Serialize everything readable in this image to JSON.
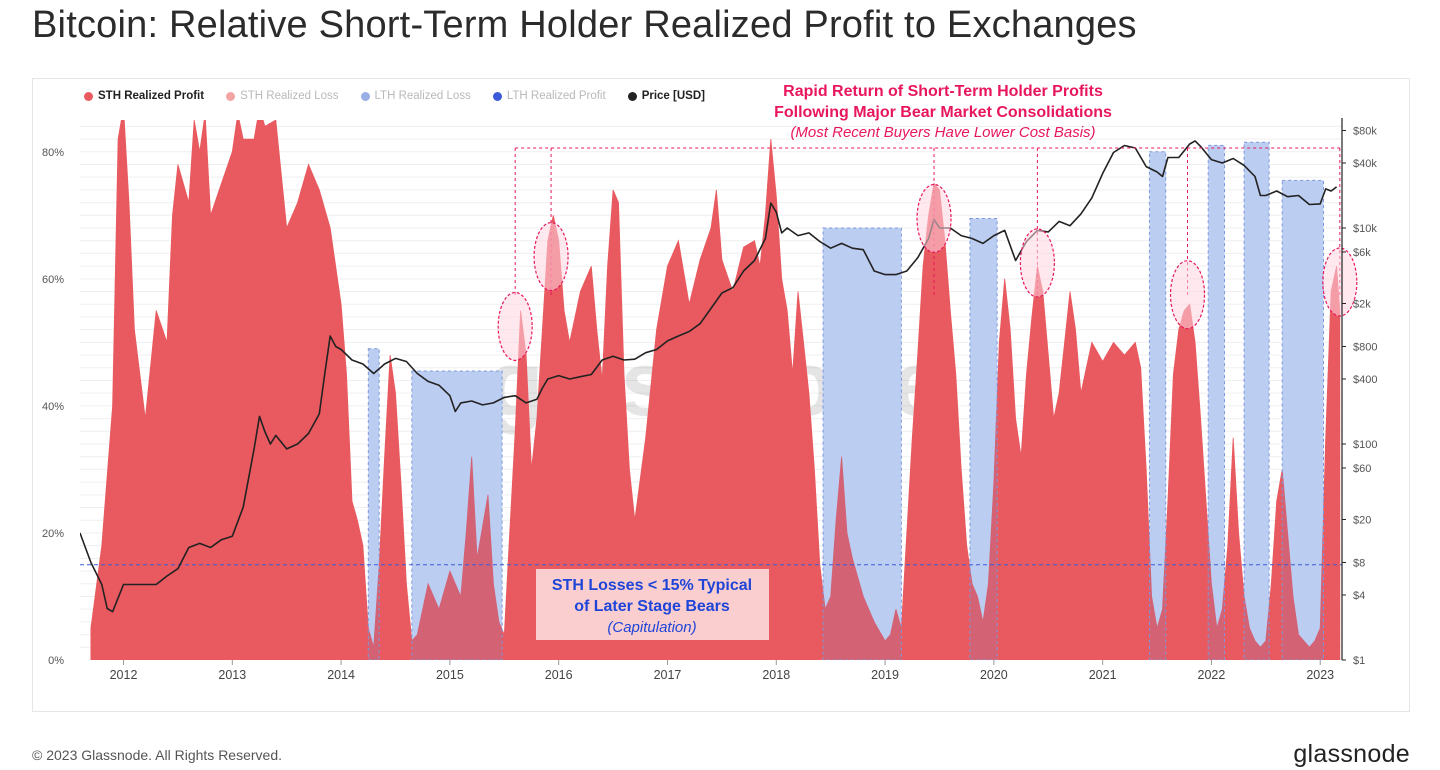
{
  "page": {
    "title": "Bitcoin: Relative Short-Term Holder Realized Profit to Exchanges",
    "copyright": "© 2023 Glassnode. All Rights Reserved.",
    "brand": "glassnode",
    "watermark": "glassnode"
  },
  "colors": {
    "sth_profit": "#e85a5f",
    "sth_loss": "#f2a4a4",
    "lth_loss": "#9aaee6",
    "lth_profit": "#3b5bd9",
    "price": "#222222",
    "bear_band": "#cddcf8",
    "annotation_pink": "#e8175d",
    "annotation_blue": "#1f45d8"
  },
  "legend": [
    {
      "label": "STH Realized Profit",
      "color": "#e85a5f",
      "active": true
    },
    {
      "label": "STH Realized Loss",
      "color": "#f2a4a4",
      "active": false
    },
    {
      "label": "LTH Realized Loss",
      "color": "#9aaee6",
      "active": false
    },
    {
      "label": "LTH Realized Profit",
      "color": "#3b5bd9",
      "active": false
    },
    {
      "label": "Price [USD]",
      "color": "#222222",
      "active": true
    }
  ],
  "annotations": {
    "top_line1": "Rapid Return of Short-Term Holder Profits",
    "top_line2": "Following Major Bear Market Consolidations",
    "top_line3": "(Most Recent Buyers Have Lower Cost Basis)",
    "bottom_line1": "STH Losses < 15% Typical",
    "bottom_line2": "of Later Stage Bears",
    "bottom_line3": "(Capitulation)"
  },
  "chart_data": {
    "type": "area",
    "title": "Bitcoin: Relative Short-Term Holder Realized Profit to Exchanges",
    "x_range": [
      2011.6,
      2023.2
    ],
    "x_ticks": [
      2012,
      2013,
      2014,
      2015,
      2016,
      2017,
      2018,
      2019,
      2020,
      2021,
      2022,
      2023
    ],
    "x_tick_labels": [
      "2012",
      "2013",
      "2014",
      "2015",
      "2016",
      "2017",
      "2018",
      "2019",
      "2020",
      "2021",
      "2022",
      "2023"
    ],
    "y_left": {
      "range": [
        0,
        0.85
      ],
      "ticks": [
        0,
        0.2,
        0.4,
        0.6,
        0.8
      ],
      "tick_labels": [
        "0%",
        "20%",
        "40%",
        "60%",
        "80%"
      ]
    },
    "y_right": {
      "scale": "log",
      "range": [
        1,
        100000
      ],
      "ticks": [
        1,
        4,
        8,
        20,
        60,
        100,
        400,
        800,
        2000,
        6000,
        10000,
        40000,
        80000
      ],
      "tick_labels": [
        "$1",
        "$4",
        "$8",
        "$20",
        "$60",
        "$100",
        "$400",
        "$800",
        "$2k",
        "$6k",
        "$10k",
        "$40k",
        "$80k"
      ]
    },
    "threshold": 0.15,
    "sth_profit": [
      [
        2011.7,
        0.05
      ],
      [
        2011.8,
        0.18
      ],
      [
        2011.9,
        0.4
      ],
      [
        2011.95,
        0.82
      ],
      [
        2012.0,
        0.87
      ],
      [
        2012.05,
        0.72
      ],
      [
        2012.1,
        0.52
      ],
      [
        2012.2,
        0.38
      ],
      [
        2012.3,
        0.55
      ],
      [
        2012.4,
        0.5
      ],
      [
        2012.45,
        0.7
      ],
      [
        2012.5,
        0.78
      ],
      [
        2012.6,
        0.72
      ],
      [
        2012.65,
        0.85
      ],
      [
        2012.7,
        0.8
      ],
      [
        2012.75,
        0.86
      ],
      [
        2012.8,
        0.7
      ],
      [
        2012.9,
        0.75
      ],
      [
        2013.0,
        0.8
      ],
      [
        2013.05,
        0.86
      ],
      [
        2013.1,
        0.82
      ],
      [
        2013.2,
        0.82
      ],
      [
        2013.25,
        0.87
      ],
      [
        2013.3,
        0.84
      ],
      [
        2013.4,
        0.85
      ],
      [
        2013.5,
        0.68
      ],
      [
        2013.6,
        0.72
      ],
      [
        2013.7,
        0.78
      ],
      [
        2013.8,
        0.74
      ],
      [
        2013.9,
        0.68
      ],
      [
        2014.0,
        0.56
      ],
      [
        2014.05,
        0.45
      ],
      [
        2014.1,
        0.25
      ],
      [
        2014.15,
        0.22
      ],
      [
        2014.2,
        0.18
      ],
      [
        2014.25,
        0.05
      ],
      [
        2014.3,
        0.02
      ],
      [
        2014.35,
        0.15
      ],
      [
        2014.4,
        0.32
      ],
      [
        2014.45,
        0.48
      ],
      [
        2014.5,
        0.42
      ],
      [
        2014.55,
        0.28
      ],
      [
        2014.6,
        0.12
      ],
      [
        2014.65,
        0.03
      ],
      [
        2014.7,
        0.04
      ],
      [
        2014.8,
        0.12
      ],
      [
        2014.9,
        0.08
      ],
      [
        2015.0,
        0.14
      ],
      [
        2015.1,
        0.1
      ],
      [
        2015.15,
        0.2
      ],
      [
        2015.2,
        0.32
      ],
      [
        2015.25,
        0.16
      ],
      [
        2015.35,
        0.26
      ],
      [
        2015.4,
        0.12
      ],
      [
        2015.45,
        0.06
      ],
      [
        2015.5,
        0.04
      ],
      [
        2015.55,
        0.2
      ],
      [
        2015.6,
        0.36
      ],
      [
        2015.65,
        0.55
      ],
      [
        2015.7,
        0.48
      ],
      [
        2015.75,
        0.3
      ],
      [
        2015.8,
        0.38
      ],
      [
        2015.85,
        0.52
      ],
      [
        2015.9,
        0.66
      ],
      [
        2015.95,
        0.7
      ],
      [
        2016.0,
        0.66
      ],
      [
        2016.05,
        0.55
      ],
      [
        2016.1,
        0.5
      ],
      [
        2016.2,
        0.58
      ],
      [
        2016.3,
        0.62
      ],
      [
        2016.35,
        0.52
      ],
      [
        2016.4,
        0.44
      ],
      [
        2016.45,
        0.62
      ],
      [
        2016.5,
        0.74
      ],
      [
        2016.55,
        0.72
      ],
      [
        2016.6,
        0.45
      ],
      [
        2016.65,
        0.3
      ],
      [
        2016.7,
        0.22
      ],
      [
        2016.8,
        0.35
      ],
      [
        2016.9,
        0.52
      ],
      [
        2017.0,
        0.62
      ],
      [
        2017.1,
        0.66
      ],
      [
        2017.2,
        0.56
      ],
      [
        2017.3,
        0.63
      ],
      [
        2017.4,
        0.68
      ],
      [
        2017.45,
        0.74
      ],
      [
        2017.5,
        0.63
      ],
      [
        2017.6,
        0.58
      ],
      [
        2017.7,
        0.65
      ],
      [
        2017.8,
        0.66
      ],
      [
        2017.85,
        0.62
      ],
      [
        2017.9,
        0.7
      ],
      [
        2017.95,
        0.82
      ],
      [
        2018.0,
        0.73
      ],
      [
        2018.05,
        0.6
      ],
      [
        2018.1,
        0.55
      ],
      [
        2018.15,
        0.45
      ],
      [
        2018.2,
        0.58
      ],
      [
        2018.25,
        0.5
      ],
      [
        2018.3,
        0.42
      ],
      [
        2018.35,
        0.3
      ],
      [
        2018.4,
        0.15
      ],
      [
        2018.45,
        0.08
      ],
      [
        2018.5,
        0.1
      ],
      [
        2018.55,
        0.22
      ],
      [
        2018.6,
        0.32
      ],
      [
        2018.65,
        0.2
      ],
      [
        2018.7,
        0.16
      ],
      [
        2018.8,
        0.1
      ],
      [
        2018.9,
        0.06
      ],
      [
        2019.0,
        0.03
      ],
      [
        2019.05,
        0.04
      ],
      [
        2019.1,
        0.08
      ],
      [
        2019.15,
        0.05
      ],
      [
        2019.2,
        0.2
      ],
      [
        2019.25,
        0.35
      ],
      [
        2019.3,
        0.48
      ],
      [
        2019.35,
        0.62
      ],
      [
        2019.4,
        0.7
      ],
      [
        2019.45,
        0.75
      ],
      [
        2019.5,
        0.74
      ],
      [
        2019.55,
        0.66
      ],
      [
        2019.6,
        0.55
      ],
      [
        2019.65,
        0.45
      ],
      [
        2019.7,
        0.3
      ],
      [
        2019.75,
        0.18
      ],
      [
        2019.8,
        0.12
      ],
      [
        2019.85,
        0.1
      ],
      [
        2019.9,
        0.06
      ],
      [
        2019.95,
        0.12
      ],
      [
        2020.0,
        0.28
      ],
      [
        2020.05,
        0.5
      ],
      [
        2020.1,
        0.6
      ],
      [
        2020.15,
        0.52
      ],
      [
        2020.2,
        0.38
      ],
      [
        2020.25,
        0.32
      ],
      [
        2020.3,
        0.45
      ],
      [
        2020.35,
        0.54
      ],
      [
        2020.4,
        0.62
      ],
      [
        2020.45,
        0.58
      ],
      [
        2020.5,
        0.48
      ],
      [
        2020.55,
        0.38
      ],
      [
        2020.6,
        0.42
      ],
      [
        2020.65,
        0.5
      ],
      [
        2020.7,
        0.58
      ],
      [
        2020.75,
        0.52
      ],
      [
        2020.8,
        0.42
      ],
      [
        2020.9,
        0.5
      ],
      [
        2021.0,
        0.47
      ],
      [
        2021.1,
        0.5
      ],
      [
        2021.2,
        0.48
      ],
      [
        2021.3,
        0.5
      ],
      [
        2021.35,
        0.46
      ],
      [
        2021.4,
        0.3
      ],
      [
        2021.45,
        0.1
      ],
      [
        2021.5,
        0.05
      ],
      [
        2021.55,
        0.08
      ],
      [
        2021.6,
        0.25
      ],
      [
        2021.65,
        0.45
      ],
      [
        2021.7,
        0.52
      ],
      [
        2021.75,
        0.55
      ],
      [
        2021.8,
        0.56
      ],
      [
        2021.85,
        0.5
      ],
      [
        2021.9,
        0.38
      ],
      [
        2021.95,
        0.25
      ],
      [
        2022.0,
        0.12
      ],
      [
        2022.05,
        0.05
      ],
      [
        2022.1,
        0.08
      ],
      [
        2022.15,
        0.18
      ],
      [
        2022.2,
        0.35
      ],
      [
        2022.25,
        0.2
      ],
      [
        2022.3,
        0.1
      ],
      [
        2022.35,
        0.05
      ],
      [
        2022.4,
        0.03
      ],
      [
        2022.45,
        0.02
      ],
      [
        2022.5,
        0.03
      ],
      [
        2022.55,
        0.12
      ],
      [
        2022.6,
        0.25
      ],
      [
        2022.65,
        0.3
      ],
      [
        2022.7,
        0.2
      ],
      [
        2022.75,
        0.1
      ],
      [
        2022.8,
        0.04
      ],
      [
        2022.85,
        0.03
      ],
      [
        2022.9,
        0.02
      ],
      [
        2022.95,
        0.03
      ],
      [
        2023.0,
        0.05
      ],
      [
        2023.05,
        0.35
      ],
      [
        2023.1,
        0.58
      ],
      [
        2023.15,
        0.62
      ],
      [
        2023.18,
        0.55
      ]
    ],
    "price": [
      [
        2011.6,
        15
      ],
      [
        2011.7,
        8
      ],
      [
        2011.8,
        5
      ],
      [
        2011.85,
        3
      ],
      [
        2011.9,
        2.8
      ],
      [
        2012.0,
        5
      ],
      [
        2012.1,
        5
      ],
      [
        2012.2,
        5
      ],
      [
        2012.3,
        5
      ],
      [
        2012.4,
        6
      ],
      [
        2012.5,
        7
      ],
      [
        2012.6,
        11
      ],
      [
        2012.7,
        12
      ],
      [
        2012.8,
        11
      ],
      [
        2012.9,
        13
      ],
      [
        2013.0,
        14
      ],
      [
        2013.1,
        26
      ],
      [
        2013.2,
        90
      ],
      [
        2013.25,
        180
      ],
      [
        2013.3,
        130
      ],
      [
        2013.35,
        100
      ],
      [
        2013.4,
        120
      ],
      [
        2013.5,
        90
      ],
      [
        2013.6,
        100
      ],
      [
        2013.7,
        125
      ],
      [
        2013.8,
        190
      ],
      [
        2013.85,
        450
      ],
      [
        2013.9,
        1000
      ],
      [
        2013.95,
        800
      ],
      [
        2014.0,
        750
      ],
      [
        2014.1,
        600
      ],
      [
        2014.2,
        550
      ],
      [
        2014.3,
        450
      ],
      [
        2014.4,
        550
      ],
      [
        2014.5,
        620
      ],
      [
        2014.6,
        580
      ],
      [
        2014.7,
        450
      ],
      [
        2014.8,
        380
      ],
      [
        2014.9,
        350
      ],
      [
        2015.0,
        280
      ],
      [
        2015.05,
        200
      ],
      [
        2015.1,
        240
      ],
      [
        2015.2,
        250
      ],
      [
        2015.3,
        230
      ],
      [
        2015.4,
        240
      ],
      [
        2015.5,
        270
      ],
      [
        2015.6,
        280
      ],
      [
        2015.7,
        240
      ],
      [
        2015.8,
        260
      ],
      [
        2015.85,
        330
      ],
      [
        2015.9,
        400
      ],
      [
        2016.0,
        430
      ],
      [
        2016.1,
        400
      ],
      [
        2016.2,
        420
      ],
      [
        2016.3,
        440
      ],
      [
        2016.4,
        600
      ],
      [
        2016.5,
        650
      ],
      [
        2016.6,
        600
      ],
      [
        2016.7,
        610
      ],
      [
        2016.8,
        700
      ],
      [
        2016.9,
        750
      ],
      [
        2017.0,
        900
      ],
      [
        2017.1,
        1000
      ],
      [
        2017.2,
        1100
      ],
      [
        2017.3,
        1300
      ],
      [
        2017.4,
        1800
      ],
      [
        2017.5,
        2500
      ],
      [
        2017.6,
        2800
      ],
      [
        2017.7,
        4000
      ],
      [
        2017.8,
        5000
      ],
      [
        2017.9,
        8000
      ],
      [
        2017.95,
        17000
      ],
      [
        2018.0,
        14000
      ],
      [
        2018.05,
        9000
      ],
      [
        2018.1,
        10000
      ],
      [
        2018.2,
        8500
      ],
      [
        2018.3,
        9000
      ],
      [
        2018.4,
        7500
      ],
      [
        2018.5,
        6500
      ],
      [
        2018.6,
        7200
      ],
      [
        2018.7,
        6500
      ],
      [
        2018.8,
        6300
      ],
      [
        2018.9,
        4000
      ],
      [
        2019.0,
        3700
      ],
      [
        2019.1,
        3700
      ],
      [
        2019.2,
        4000
      ],
      [
        2019.3,
        5300
      ],
      [
        2019.4,
        8000
      ],
      [
        2019.45,
        12000
      ],
      [
        2019.5,
        10000
      ],
      [
        2019.6,
        10000
      ],
      [
        2019.7,
        8500
      ],
      [
        2019.8,
        8000
      ],
      [
        2019.9,
        7200
      ],
      [
        2020.0,
        8500
      ],
      [
        2020.1,
        9500
      ],
      [
        2020.2,
        5000
      ],
      [
        2020.3,
        7500
      ],
      [
        2020.4,
        9500
      ],
      [
        2020.5,
        9200
      ],
      [
        2020.6,
        11500
      ],
      [
        2020.7,
        10500
      ],
      [
        2020.8,
        13500
      ],
      [
        2020.9,
        19000
      ],
      [
        2021.0,
        32000
      ],
      [
        2021.1,
        50000
      ],
      [
        2021.2,
        58000
      ],
      [
        2021.3,
        55000
      ],
      [
        2021.4,
        37000
      ],
      [
        2021.5,
        33000
      ],
      [
        2021.55,
        30000
      ],
      [
        2021.6,
        45000
      ],
      [
        2021.7,
        45000
      ],
      [
        2021.8,
        60000
      ],
      [
        2021.85,
        64000
      ],
      [
        2021.9,
        57000
      ],
      [
        2022.0,
        43000
      ],
      [
        2022.1,
        40000
      ],
      [
        2022.2,
        44000
      ],
      [
        2022.3,
        38000
      ],
      [
        2022.4,
        30000
      ],
      [
        2022.45,
        20000
      ],
      [
        2022.5,
        20000
      ],
      [
        2022.6,
        22000
      ],
      [
        2022.7,
        19500
      ],
      [
        2022.8,
        20000
      ],
      [
        2022.9,
        16500
      ],
      [
        2023.0,
        16700
      ],
      [
        2023.05,
        23000
      ],
      [
        2023.1,
        22000
      ],
      [
        2023.15,
        24000
      ]
    ],
    "bear_bands": [
      [
        2014.25,
        2014.35,
        0.49
      ],
      [
        2014.65,
        2015.48,
        0.455
      ],
      [
        2018.43,
        2019.15,
        0.68
      ],
      [
        2019.78,
        2020.03,
        0.695
      ],
      [
        2021.43,
        2021.58,
        0.8
      ],
      [
        2021.97,
        2022.12,
        0.81
      ],
      [
        2022.3,
        2022.53,
        0.815
      ],
      [
        2022.65,
        2023.03,
        0.755
      ]
    ],
    "ellipses": [
      [
        2015.6,
        0.525
      ],
      [
        2015.93,
        0.635
      ],
      [
        2019.45,
        0.695
      ],
      [
        2020.4,
        0.625
      ],
      [
        2021.78,
        0.575
      ],
      [
        2023.18,
        0.595
      ]
    ],
    "dashed_verticals": [
      2015.6,
      2015.93,
      2019.45,
      2020.4,
      2021.78,
      2023.18
    ]
  }
}
